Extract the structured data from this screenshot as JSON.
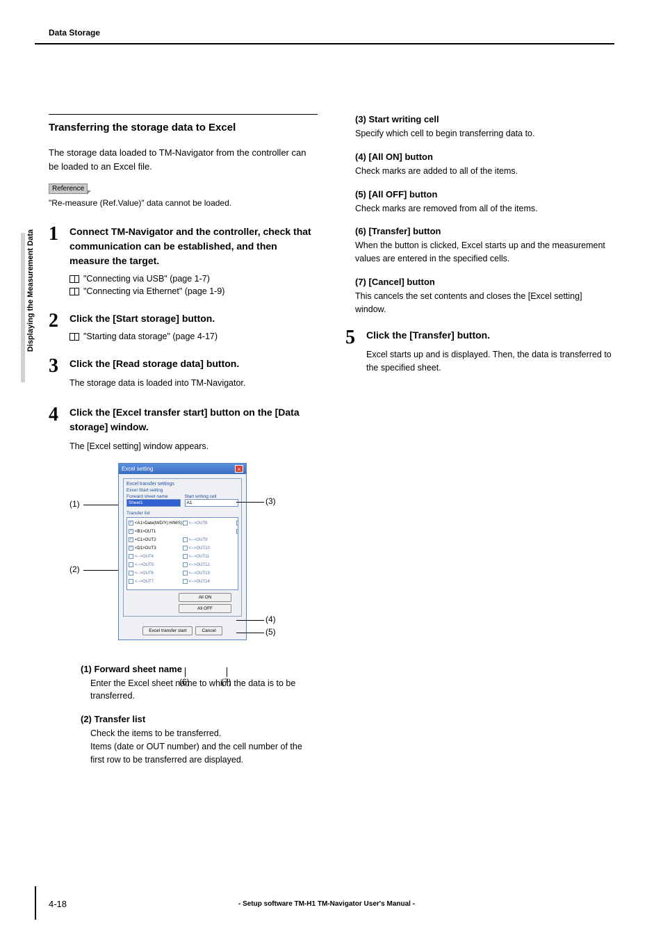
{
  "header": {
    "title": "Data Storage"
  },
  "sidetab": {
    "label": "Displaying the Measurement Data"
  },
  "section": {
    "title": "Transferring the storage data to Excel"
  },
  "intro": "The storage data loaded to TM-Navigator from the controller can be loaded to an Excel file.",
  "reference": {
    "badge": "Reference",
    "text": "\"Re-measure (Ref.Value)\" data cannot be loaded."
  },
  "steps": {
    "s1": {
      "title": "Connect TM-Navigator and the controller, check that communication can be established, and then measure the target.",
      "ref1": "\"Connecting via USB\" (page 1-7)",
      "ref2": "\"Connecting via Ethernet\" (page 1-9)"
    },
    "s2": {
      "title": "Click the [Start storage] button.",
      "ref1": "\"Starting data storage\" (page 4-17)"
    },
    "s3": {
      "title": "Click the [Read storage data] button.",
      "sub": "The storage data is loaded into TM-Navigator."
    },
    "s4": {
      "title": "Click the [Excel transfer start] button on the [Data storage] window.",
      "sub": "The [Excel setting] window appears."
    },
    "s5": {
      "title": "Click the [Transfer] button.",
      "sub": "Excel starts up and is displayed. Then, the data is transferred to the specified sheet."
    }
  },
  "dialog": {
    "title": "Excel setting",
    "group1": "Excel transfer settings",
    "group1a": "Excel Start setting",
    "fwd_label": "Forward sheet name",
    "fwd_value": "Sheet1",
    "start_label": "Start writing cell",
    "start_value": "A1",
    "transfer_list_label": "Transfer list",
    "items_left": [
      {
        "on": true,
        "t": "<A1>Date(M/D/Y):H/M/S)"
      },
      {
        "on": true,
        "t": "<B1>OUT1"
      },
      {
        "on": true,
        "t": "<C1>OUT2"
      },
      {
        "on": true,
        "t": "<D1>OUT3"
      },
      {
        "on": false,
        "t": "<-->OUT4"
      },
      {
        "on": false,
        "t": "<-->OUT5"
      },
      {
        "on": false,
        "t": "<-->OUT6"
      },
      {
        "on": false,
        "t": "<-->OUT7"
      },
      {
        "on": false,
        "t": "<-->OUT8"
      }
    ],
    "items_right": [
      {
        "on": false,
        "t": ""
      },
      {
        "on": false,
        "t": "<-->OUT9"
      },
      {
        "on": false,
        "t": "<-->OUT10"
      },
      {
        "on": false,
        "t": "<-->OUT11"
      },
      {
        "on": false,
        "t": "<-->OUT12"
      },
      {
        "on": false,
        "t": "<-->OUT13"
      },
      {
        "on": false,
        "t": "<-->OUT14"
      },
      {
        "on": false,
        "t": "<-->OUT15"
      },
      {
        "on": false,
        "t": "<-->OUT16"
      }
    ],
    "btn_allon": "All ON",
    "btn_alloff": "All OFF",
    "btn_transfer": "Excel transfer start",
    "btn_cancel": "Cancel"
  },
  "callouts": {
    "c1": "(1)",
    "c2": "(2)",
    "c3": "(3)",
    "c4": "(4)",
    "c5": "(5)",
    "c6": "(6)",
    "c7": "(7)"
  },
  "defs": {
    "d1": {
      "h": "(1) Forward sheet name",
      "p": "Enter the Excel sheet name to which the data is to be transferred."
    },
    "d2": {
      "h": "(2) Transfer list",
      "p": "Check the items to be transferred.\nItems (date or OUT number) and the cell number of the first row to be transferred are displayed."
    },
    "d3": {
      "h": "(3) Start writing cell",
      "p": "Specify which cell to begin transferring data to."
    },
    "d4": {
      "h": "(4) [All ON] button",
      "p": "Check marks are added to all of the items."
    },
    "d5": {
      "h": "(5) [All OFF] button",
      "p": "Check marks are removed from all of the items."
    },
    "d6": {
      "h": "(6) [Transfer] button",
      "p": "When the button is clicked, Excel starts up and the measurement values are entered in the specified cells."
    },
    "d7": {
      "h": "(7) [Cancel] button",
      "p": "This cancels the set contents and closes the [Excel setting] window."
    }
  },
  "footer": {
    "page": "4-18",
    "center": "- Setup software TM-H1 TM-Navigator User's Manual -"
  }
}
